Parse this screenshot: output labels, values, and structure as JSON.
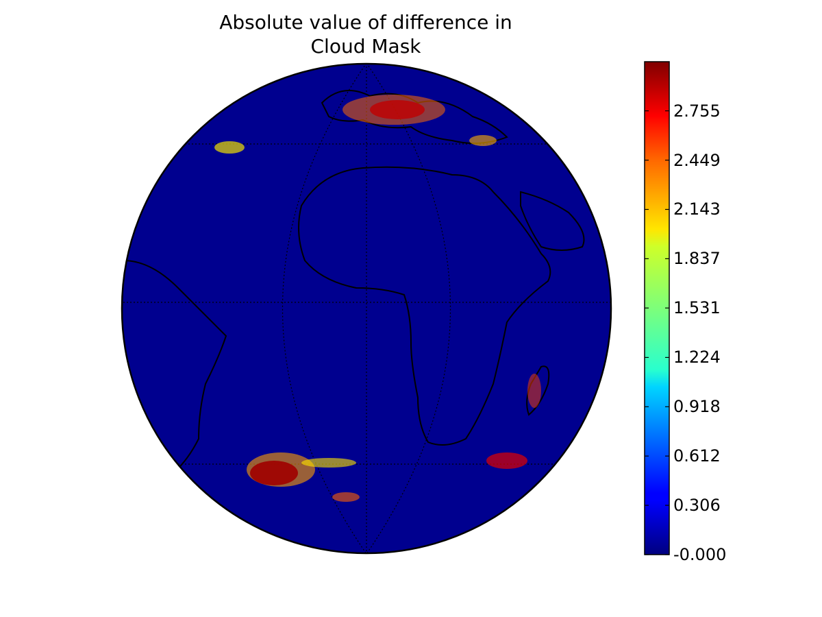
{
  "figure": {
    "title_lines": [
      "Absolute value of difference in",
      "Cloud Mask"
    ]
  },
  "map": {
    "projection": "orthographic",
    "colormap": "jet",
    "ocean_color": "#00008f",
    "coastline_color": "#000000",
    "graticule_style": "dotted"
  },
  "colorbar": {
    "vmin": 0,
    "vmax": 3.06,
    "ticks": [
      {
        "value": 2.755,
        "label": "2.755"
      },
      {
        "value": 2.449,
        "label": "2.449"
      },
      {
        "value": 2.143,
        "label": "2.143"
      },
      {
        "value": 1.837,
        "label": "1.837"
      },
      {
        "value": 1.531,
        "label": "1.531"
      },
      {
        "value": 1.224,
        "label": "1.224"
      },
      {
        "value": 0.918,
        "label": "0.918"
      },
      {
        "value": 0.612,
        "label": "0.612"
      },
      {
        "value": 0.306,
        "label": "0.306"
      },
      {
        "value": 0.0,
        "label": "-0.000"
      }
    ]
  }
}
